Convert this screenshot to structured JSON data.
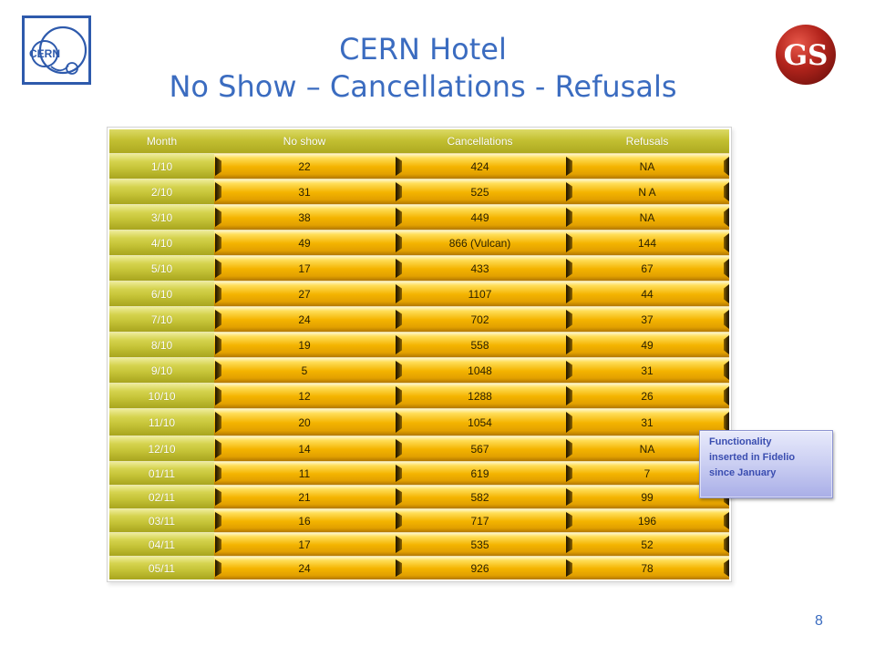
{
  "slide": {
    "title_line1": "CERN Hotel",
    "title_line2": "No Show – Cancellations - Refusals",
    "page_number": "8"
  },
  "logos": {
    "cern": {
      "text": "CERN"
    },
    "gs": {
      "text": "GS"
    }
  },
  "table": {
    "columns": [
      "Month",
      "No show",
      "Cancellations",
      "Refusals"
    ],
    "rows": [
      [
        "1/10",
        "22",
        "424",
        "NA"
      ],
      [
        "2/10",
        "31",
        "525",
        "N A"
      ],
      [
        "3/10",
        "38",
        "449",
        "NA"
      ],
      [
        "4/10",
        "49",
        "866 (Vulcan)",
        "144"
      ],
      [
        "5/10",
        "17",
        "433",
        "67"
      ],
      [
        "6/10",
        "27",
        "1107",
        "44"
      ],
      [
        "7/10",
        "24",
        "702",
        "37"
      ],
      [
        "8/10",
        "19",
        "558",
        "49"
      ],
      [
        "9/10",
        "5",
        "1048",
        "31"
      ],
      [
        "10/10",
        "12",
        "1288",
        "26"
      ],
      [
        "11/10",
        "20",
        "1054",
        "31"
      ],
      [
        "12/10",
        "14",
        "567",
        "NA"
      ],
      [
        "01/11",
        "11",
        "619",
        "7"
      ],
      [
        "02/11",
        "21",
        "582",
        "99"
      ],
      [
        "03/11",
        "16",
        "717",
        "196"
      ],
      [
        "04/11",
        "17",
        "535",
        "52"
      ],
      [
        "05/11",
        "24",
        "926",
        "78"
      ]
    ]
  },
  "callout": {
    "lines": [
      "Functionality",
      "inserted in Fidelio",
      "since January"
    ]
  },
  "colors": {
    "title": "#3B6CC0",
    "page_number": "#3B6CC0",
    "gold": "#F4B400",
    "olive": "#C4C236",
    "callout_text": "#3A4DB0",
    "cern_blue": "#2E5AAC",
    "gs_red": "#B3241C"
  }
}
